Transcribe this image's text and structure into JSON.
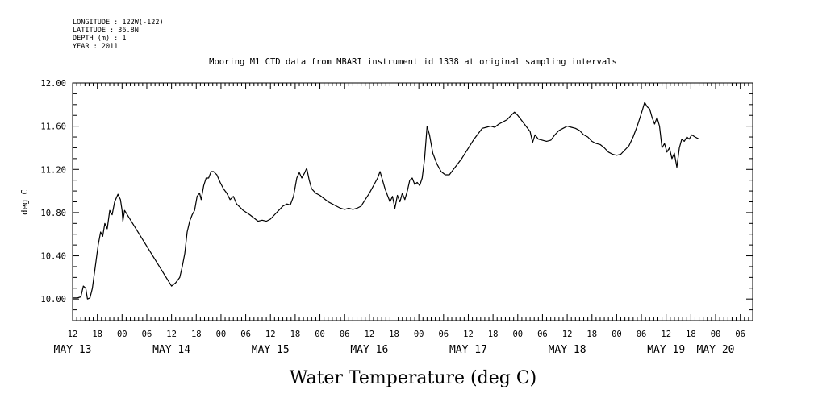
{
  "metadata": {
    "lines": [
      "LONGITUDE : 122W(-122)",
      "LATITUDE : 36.8N",
      "DEPTH (m) : 1",
      "YEAR : 2011"
    ]
  },
  "chart_data": {
    "type": "line",
    "title": "Mooring M1 CTD data from MBARI instrument id 1338 at original sampling intervals",
    "xlabel": "Water Temperature (deg C)",
    "ylabel": "deg C",
    "ylim": [
      9.8,
      12.0
    ],
    "xlim": [
      12,
      177
    ],
    "x_units": "hours since 2011-05-13 00:00",
    "yticks": [
      "10.00",
      "10.40",
      "10.80",
      "11.20",
      "11.60",
      "12.00"
    ],
    "hour_ticks": [
      "12",
      "18",
      "00",
      "06",
      "12",
      "18",
      "00",
      "06",
      "12",
      "18",
      "00",
      "06",
      "12",
      "18",
      "00",
      "06",
      "12",
      "18",
      "00",
      "06",
      "12",
      "18",
      "00",
      "06",
      "12",
      "18",
      "00",
      "06",
      "12",
      "18",
      "00",
      "06",
      "12"
    ],
    "day_labels": [
      {
        "label": "MAY 13",
        "x": 12
      },
      {
        "label": "MAY 14",
        "x": 36
      },
      {
        "label": "MAY 15",
        "x": 60
      },
      {
        "label": "MAY 16",
        "x": 84
      },
      {
        "label": "MAY 17",
        "x": 108
      },
      {
        "label": "MAY 18",
        "x": 132
      },
      {
        "label": "MAY 19",
        "x": 156
      },
      {
        "label": "MAY 20",
        "x": 168
      }
    ],
    "grid": false,
    "series": [
      {
        "points": [
          [
            12.0,
            10.01
          ],
          [
            13.2,
            10.01
          ],
          [
            14.0,
            10.02
          ],
          [
            14.6,
            10.12
          ],
          [
            15.2,
            10.1
          ],
          [
            15.6,
            10.0
          ],
          [
            16.2,
            10.01
          ],
          [
            16.8,
            10.1
          ],
          [
            17.5,
            10.3
          ],
          [
            18.2,
            10.5
          ],
          [
            18.8,
            10.62
          ],
          [
            19.3,
            10.58
          ],
          [
            19.8,
            10.7
          ],
          [
            20.4,
            10.65
          ],
          [
            21.0,
            10.82
          ],
          [
            21.6,
            10.78
          ],
          [
            22.2,
            10.9
          ],
          [
            23.0,
            10.97
          ],
          [
            23.6,
            10.92
          ],
          [
            24.0,
            10.82
          ],
          [
            24.2,
            10.72
          ],
          [
            24.6,
            10.82
          ],
          [
            36.0,
            10.12
          ],
          [
            37.0,
            10.15
          ],
          [
            38.0,
            10.2
          ],
          [
            38.6,
            10.3
          ],
          [
            39.2,
            10.42
          ],
          [
            39.8,
            10.62
          ],
          [
            40.4,
            10.72
          ],
          [
            41.0,
            10.78
          ],
          [
            41.6,
            10.82
          ],
          [
            42.2,
            10.95
          ],
          [
            42.8,
            10.98
          ],
          [
            43.2,
            10.92
          ],
          [
            43.8,
            11.05
          ],
          [
            44.4,
            11.12
          ],
          [
            45.0,
            11.12
          ],
          [
            45.6,
            11.18
          ],
          [
            46.2,
            11.18
          ],
          [
            47.0,
            11.15
          ],
          [
            47.8,
            11.08
          ],
          [
            48.6,
            11.02
          ],
          [
            49.4,
            10.98
          ],
          [
            50.2,
            10.92
          ],
          [
            51.0,
            10.95
          ],
          [
            51.8,
            10.88
          ],
          [
            52.6,
            10.85
          ],
          [
            53.4,
            10.82
          ],
          [
            54.2,
            10.8
          ],
          [
            55.0,
            10.78
          ],
          [
            56.0,
            10.75
          ],
          [
            57.0,
            10.72
          ],
          [
            58.0,
            10.73
          ],
          [
            59.0,
            10.72
          ],
          [
            60.0,
            10.74
          ],
          [
            61.0,
            10.78
          ],
          [
            62.0,
            10.82
          ],
          [
            63.0,
            10.86
          ],
          [
            64.0,
            10.88
          ],
          [
            64.8,
            10.87
          ],
          [
            65.6,
            10.95
          ],
          [
            66.4,
            11.12
          ],
          [
            67.0,
            11.17
          ],
          [
            67.6,
            11.12
          ],
          [
            68.2,
            11.16
          ],
          [
            68.8,
            11.21
          ],
          [
            69.4,
            11.1
          ],
          [
            70.0,
            11.02
          ],
          [
            71.0,
            10.98
          ],
          [
            72.0,
            10.96
          ],
          [
            73.0,
            10.93
          ],
          [
            74.0,
            10.9
          ],
          [
            75.0,
            10.88
          ],
          [
            76.0,
            10.86
          ],
          [
            77.0,
            10.84
          ],
          [
            78.0,
            10.83
          ],
          [
            79.0,
            10.84
          ],
          [
            80.0,
            10.83
          ],
          [
            81.0,
            10.84
          ],
          [
            82.0,
            10.86
          ],
          [
            83.0,
            10.92
          ],
          [
            84.0,
            10.98
          ],
          [
            85.0,
            11.05
          ],
          [
            86.0,
            11.12
          ],
          [
            86.6,
            11.18
          ],
          [
            87.2,
            11.1
          ],
          [
            87.8,
            11.02
          ],
          [
            88.4,
            10.96
          ],
          [
            89.0,
            10.9
          ],
          [
            89.6,
            10.95
          ],
          [
            90.2,
            10.84
          ],
          [
            90.8,
            10.96
          ],
          [
            91.4,
            10.9
          ],
          [
            92.0,
            10.98
          ],
          [
            92.6,
            10.92
          ],
          [
            93.2,
            11.0
          ],
          [
            93.8,
            11.1
          ],
          [
            94.4,
            11.12
          ],
          [
            95.0,
            11.06
          ],
          [
            95.6,
            11.08
          ],
          [
            96.2,
            11.05
          ],
          [
            96.8,
            11.12
          ],
          [
            97.4,
            11.3
          ],
          [
            98.0,
            11.6
          ],
          [
            98.6,
            11.52
          ],
          [
            99.4,
            11.35
          ],
          [
            100.4,
            11.25
          ],
          [
            101.4,
            11.18
          ],
          [
            102.4,
            11.15
          ],
          [
            103.4,
            11.15
          ],
          [
            104.4,
            11.2
          ],
          [
            105.4,
            11.25
          ],
          [
            106.4,
            11.3
          ],
          [
            107.4,
            11.36
          ],
          [
            108.4,
            11.42
          ],
          [
            109.4,
            11.48
          ],
          [
            110.4,
            11.53
          ],
          [
            111.4,
            11.58
          ],
          [
            112.4,
            11.59
          ],
          [
            113.4,
            11.6
          ],
          [
            114.4,
            11.59
          ],
          [
            115.4,
            11.62
          ],
          [
            116.4,
            11.64
          ],
          [
            117.4,
            11.66
          ],
          [
            118.4,
            11.7
          ],
          [
            119.2,
            11.73
          ],
          [
            120.0,
            11.7
          ],
          [
            121.0,
            11.65
          ],
          [
            122.0,
            11.6
          ],
          [
            123.0,
            11.55
          ],
          [
            123.6,
            11.45
          ],
          [
            124.2,
            11.52
          ],
          [
            125.0,
            11.48
          ],
          [
            126.0,
            11.47
          ],
          [
            127.0,
            11.46
          ],
          [
            128.0,
            11.47
          ],
          [
            129.0,
            11.52
          ],
          [
            130.0,
            11.56
          ],
          [
            131.0,
            11.58
          ],
          [
            132.0,
            11.6
          ],
          [
            133.0,
            11.59
          ],
          [
            134.0,
            11.58
          ],
          [
            135.0,
            11.56
          ],
          [
            136.0,
            11.52
          ],
          [
            137.0,
            11.5
          ],
          [
            138.0,
            11.46
          ],
          [
            139.0,
            11.44
          ],
          [
            140.0,
            11.43
          ],
          [
            141.0,
            11.4
          ],
          [
            142.0,
            11.36
          ],
          [
            143.0,
            11.34
          ],
          [
            144.0,
            11.33
          ],
          [
            145.0,
            11.34
          ],
          [
            146.0,
            11.38
          ],
          [
            147.0,
            11.42
          ],
          [
            148.0,
            11.5
          ],
          [
            149.0,
            11.6
          ],
          [
            150.0,
            11.72
          ],
          [
            150.8,
            11.82
          ],
          [
            151.4,
            11.78
          ],
          [
            152.0,
            11.76
          ],
          [
            152.6,
            11.68
          ],
          [
            153.2,
            11.62
          ],
          [
            153.8,
            11.68
          ],
          [
            154.4,
            11.6
          ],
          [
            155.0,
            11.4
          ],
          [
            155.6,
            11.44
          ],
          [
            156.2,
            11.36
          ],
          [
            156.8,
            11.4
          ],
          [
            157.4,
            11.3
          ],
          [
            158.0,
            11.35
          ],
          [
            158.6,
            11.22
          ],
          [
            159.2,
            11.4
          ],
          [
            159.8,
            11.48
          ],
          [
            160.4,
            11.46
          ],
          [
            161.0,
            11.5
          ],
          [
            161.6,
            11.48
          ],
          [
            162.2,
            11.52
          ],
          [
            163.0,
            11.5
          ],
          [
            164.0,
            11.48
          ]
        ]
      }
    ]
  }
}
